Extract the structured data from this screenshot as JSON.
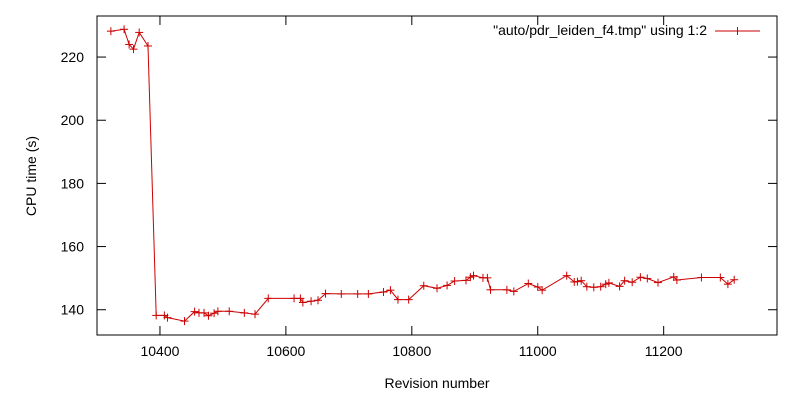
{
  "chart_data": {
    "type": "line",
    "xlabel": "Revision number",
    "ylabel": "CPU time (s)",
    "xlim": [
      10300,
      11380
    ],
    "ylim": [
      132,
      233
    ],
    "x_ticks": [
      10400,
      10600,
      10800,
      11000,
      11200
    ],
    "y_ticks": [
      140,
      160,
      180,
      200,
      220
    ],
    "grid": false,
    "legend_position": "top-right",
    "series": [
      {
        "name": "\"auto/pdr_leiden_f4.tmp\" using 1:2",
        "color": "#cc0000",
        "marker": "plus",
        "points": [
          [
            10322,
            228.2
          ],
          [
            10343,
            228.8
          ],
          [
            10351,
            224.0
          ],
          [
            10358,
            222.5
          ],
          [
            10367,
            227.8
          ],
          [
            10381,
            223.5
          ],
          [
            10394,
            138.2
          ],
          [
            10407,
            138.2
          ],
          [
            10412,
            137.5
          ],
          [
            10439,
            136.4
          ],
          [
            10455,
            139.4
          ],
          [
            10462,
            139.0
          ],
          [
            10470,
            139.0
          ],
          [
            10477,
            138.1
          ],
          [
            10486,
            138.9
          ],
          [
            10492,
            139.5
          ],
          [
            10510,
            139.5
          ],
          [
            10534,
            139.0
          ],
          [
            10551,
            138.6
          ],
          [
            10572,
            143.6
          ],
          [
            10613,
            143.6
          ],
          [
            10623,
            143.6
          ],
          [
            10627,
            142.3
          ],
          [
            10640,
            142.7
          ],
          [
            10651,
            143.0
          ],
          [
            10663,
            145.1
          ],
          [
            10688,
            145.0
          ],
          [
            10714,
            145.0
          ],
          [
            10731,
            145.0
          ],
          [
            10755,
            145.6
          ],
          [
            10766,
            146.2
          ],
          [
            10778,
            143.2
          ],
          [
            10795,
            143.2
          ],
          [
            10819,
            147.6
          ],
          [
            10840,
            146.8
          ],
          [
            10856,
            147.7
          ],
          [
            10868,
            149.1
          ],
          [
            10886,
            149.3
          ],
          [
            10893,
            150.3
          ],
          [
            10898,
            150.8
          ],
          [
            10913,
            150.1
          ],
          [
            10920,
            150.1
          ],
          [
            10925,
            146.3
          ],
          [
            10951,
            146.3
          ],
          [
            10962,
            145.8
          ],
          [
            10985,
            148.3
          ],
          [
            11000,
            147.2
          ],
          [
            11007,
            146.2
          ],
          [
            11046,
            150.8
          ],
          [
            11058,
            148.8
          ],
          [
            11063,
            148.9
          ],
          [
            11069,
            149.2
          ],
          [
            11078,
            147.3
          ],
          [
            11089,
            147.1
          ],
          [
            11100,
            147.3
          ],
          [
            11108,
            148.1
          ],
          [
            11113,
            148.5
          ],
          [
            11130,
            147.4
          ],
          [
            11138,
            149.2
          ],
          [
            11150,
            148.7
          ],
          [
            11163,
            150.3
          ],
          [
            11174,
            149.9
          ],
          [
            11191,
            148.6
          ],
          [
            11216,
            150.4
          ],
          [
            11221,
            149.4
          ],
          [
            11260,
            150.2
          ],
          [
            11290,
            150.2
          ],
          [
            11302,
            148.1
          ],
          [
            11312,
            149.5
          ]
        ]
      }
    ]
  }
}
